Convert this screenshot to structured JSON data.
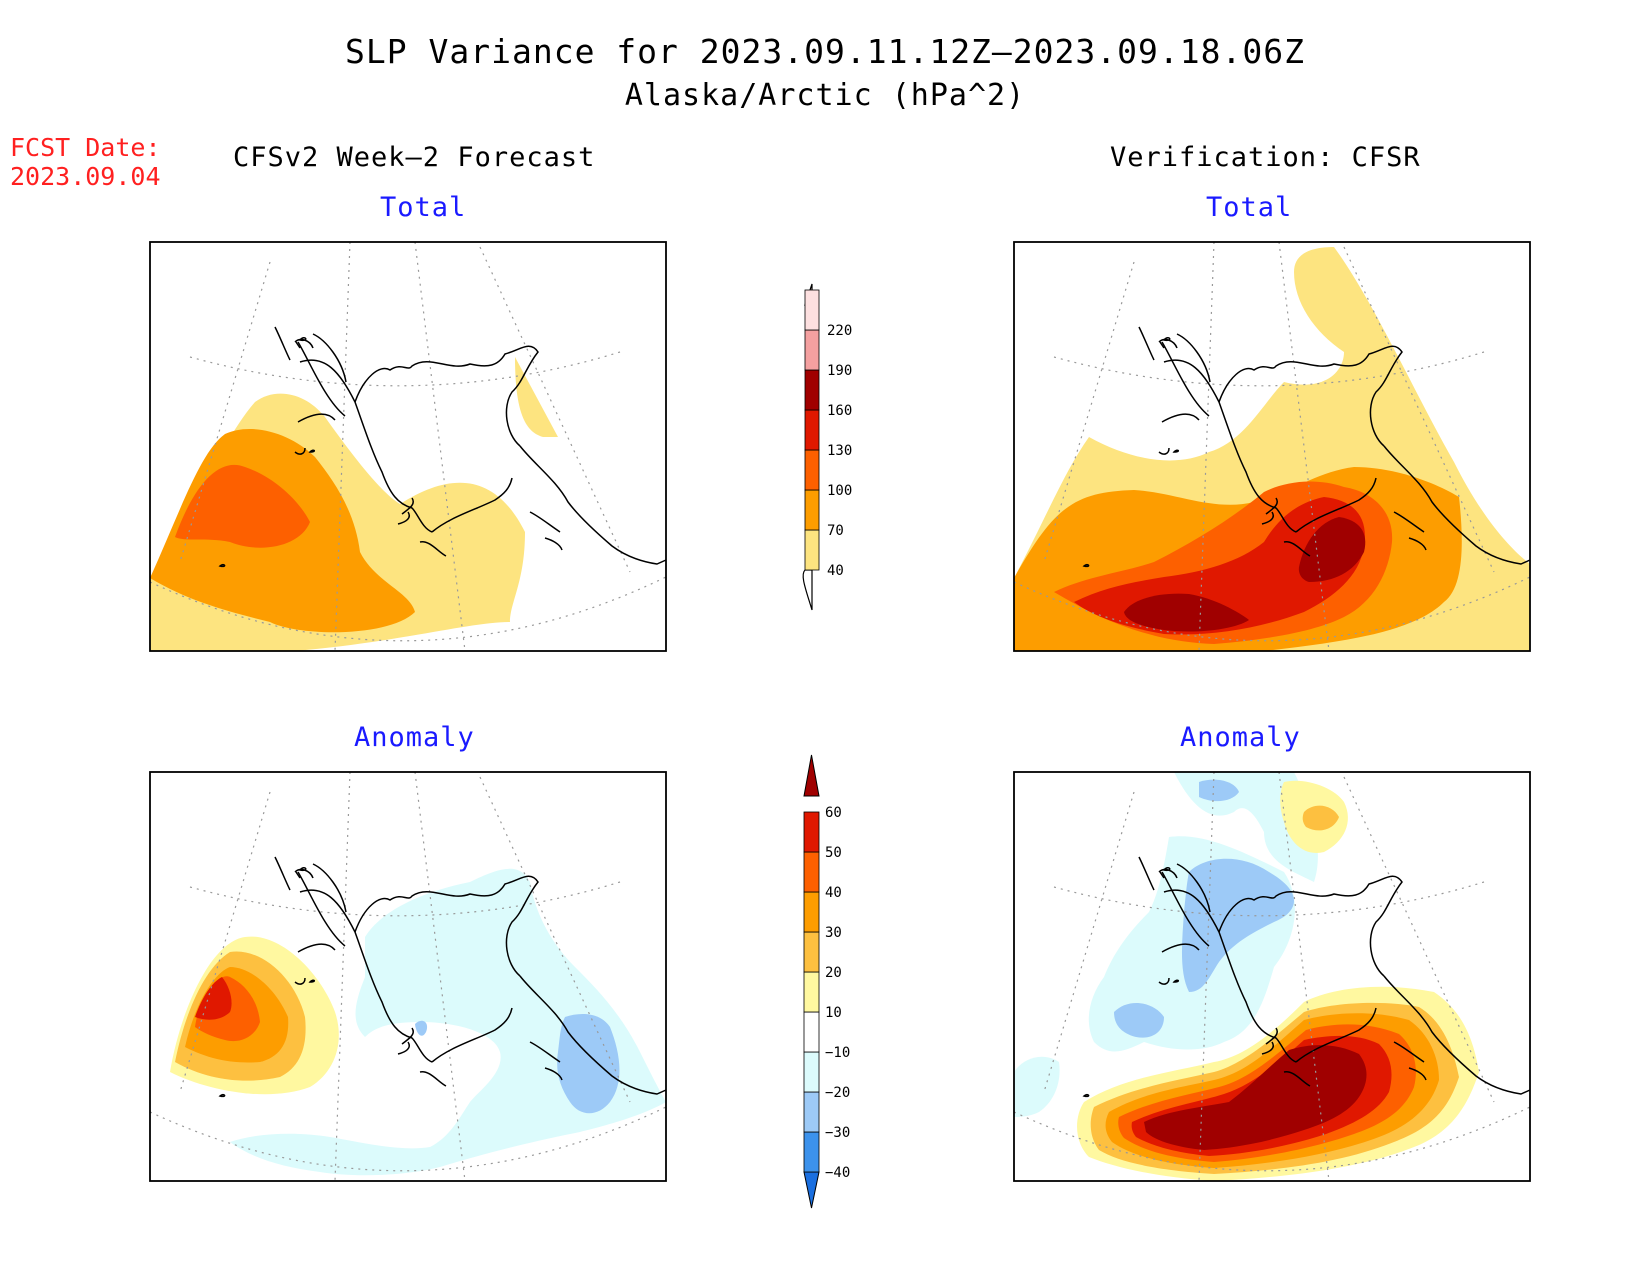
{
  "title": "SLP Variance for 2023.09.11.12Z–2023.09.18.06Z",
  "subtitle": "Alaska/Arctic (hPa^2)",
  "fcst_date_label": "FCST Date:",
  "fcst_date_value": "2023.09.04",
  "left_column_title": "CFSv2 Week–2 Forecast",
  "right_column_title": "Verification: CFSR",
  "panels": {
    "forecast_total": "Total",
    "verification_total": "Total",
    "forecast_anomaly": "Anomaly",
    "verification_anomaly": "Anomaly"
  },
  "total_colorbar": {
    "levels": [
      "40",
      "70",
      "100",
      "130",
      "160",
      "190",
      "220"
    ],
    "colors": [
      "#fde480",
      "#fd9d00",
      "#fd6000",
      "#e01800",
      "#a00000",
      "#f4a0a0",
      "#fde0e0"
    ]
  },
  "anomaly_colorbar": {
    "levels": [
      "−40",
      "−30",
      "−20",
      "−10",
      "10",
      "20",
      "30",
      "40",
      "50",
      "60"
    ],
    "colors": [
      "#1a6fe0",
      "#3c92ec",
      "#9dcaf7",
      "#dcfbfc",
      "#ffffff",
      "#fff8a0",
      "#fdc040",
      "#fd9d00",
      "#fd6000",
      "#e01800",
      "#a00000"
    ]
  }
}
